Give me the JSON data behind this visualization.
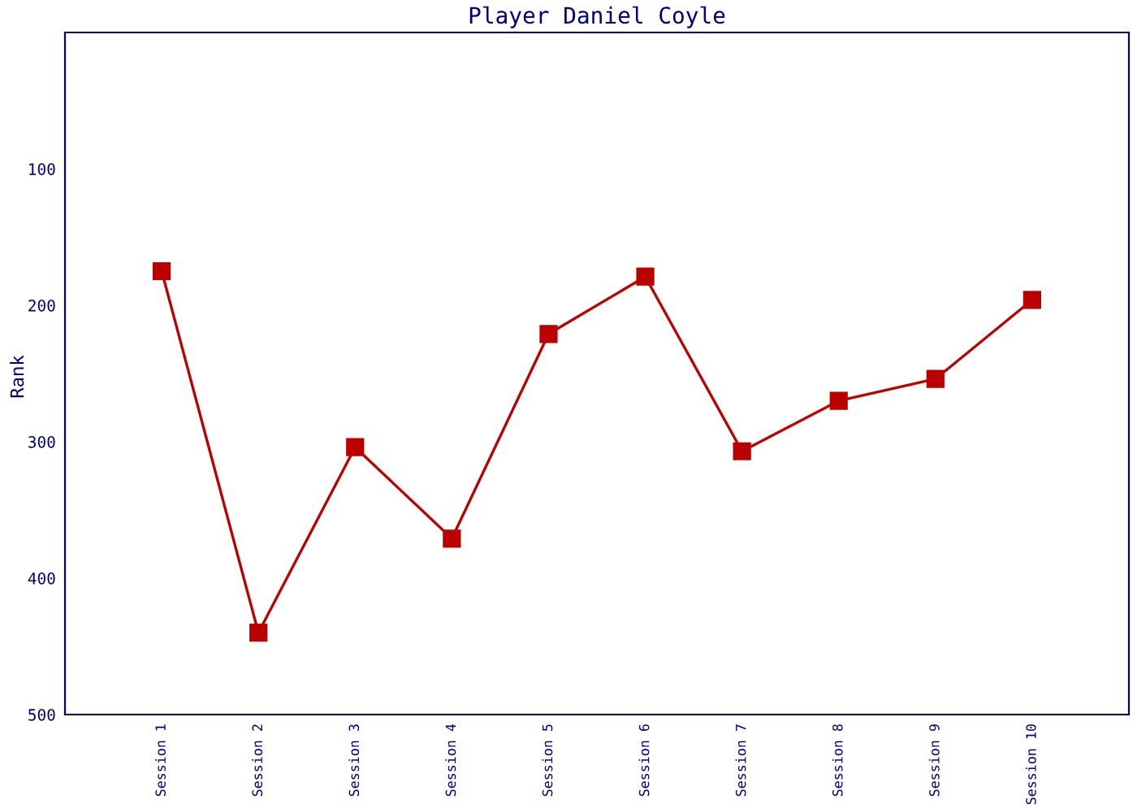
{
  "chart_data": {
    "type": "line",
    "title": "Player Daniel Coyle",
    "ylabel": "Rank",
    "categories": [
      "Session 1",
      "Session 2",
      "Session 3",
      "Session 4",
      "Session 5",
      "Session 6",
      "Session 7",
      "Session 8",
      "Session 9",
      "Session 10"
    ],
    "series": [
      {
        "color": "#bb0000",
        "values": [
          175,
          440,
          304,
          371,
          221,
          179,
          307,
          270,
          254,
          196
        ]
      }
    ],
    "ylim": [
      500,
      0
    ],
    "yticks": [
      100,
      200,
      300,
      400,
      500
    ],
    "marker": "square",
    "line_style": "solid",
    "grid": false,
    "legend": false
  }
}
